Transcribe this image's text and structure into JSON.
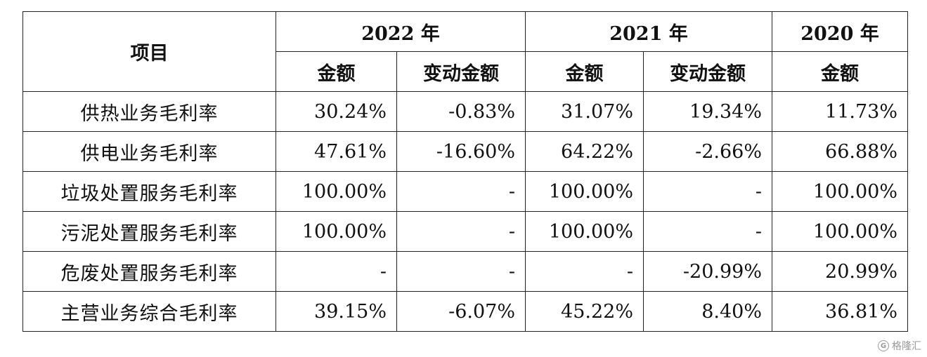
{
  "table": {
    "header": {
      "item": "项目",
      "years": [
        "2022 年",
        "2021 年",
        "2020 年"
      ],
      "sub": [
        "金额",
        "变动金额",
        "金额",
        "变动金额",
        "金额"
      ]
    },
    "rows": [
      {
        "label": "供热业务毛利率",
        "values": [
          "30.24%",
          "-0.83%",
          "31.07%",
          "19.34%",
          "11.73%"
        ]
      },
      {
        "label": "供电业务毛利率",
        "values": [
          "47.61%",
          "-16.60%",
          "64.22%",
          "-2.66%",
          "66.88%"
        ]
      },
      {
        "label": "垃圾处置服务毛利率",
        "values": [
          "100.00%",
          "-",
          "100.00%",
          "-",
          "100.00%"
        ]
      },
      {
        "label": "污泥处置服务毛利率",
        "values": [
          "100.00%",
          "-",
          "100.00%",
          "-",
          "100.00%"
        ]
      },
      {
        "label": "危废处置服务毛利率",
        "values": [
          "-",
          "-",
          "-",
          "-20.99%",
          "20.99%"
        ]
      },
      {
        "label": "主营业务综合毛利率",
        "values": [
          "39.15%",
          "-6.07%",
          "45.22%",
          "8.40%",
          "36.81%"
        ]
      }
    ]
  },
  "watermark": {
    "icon": "g-logo-icon",
    "text": "格隆汇"
  }
}
